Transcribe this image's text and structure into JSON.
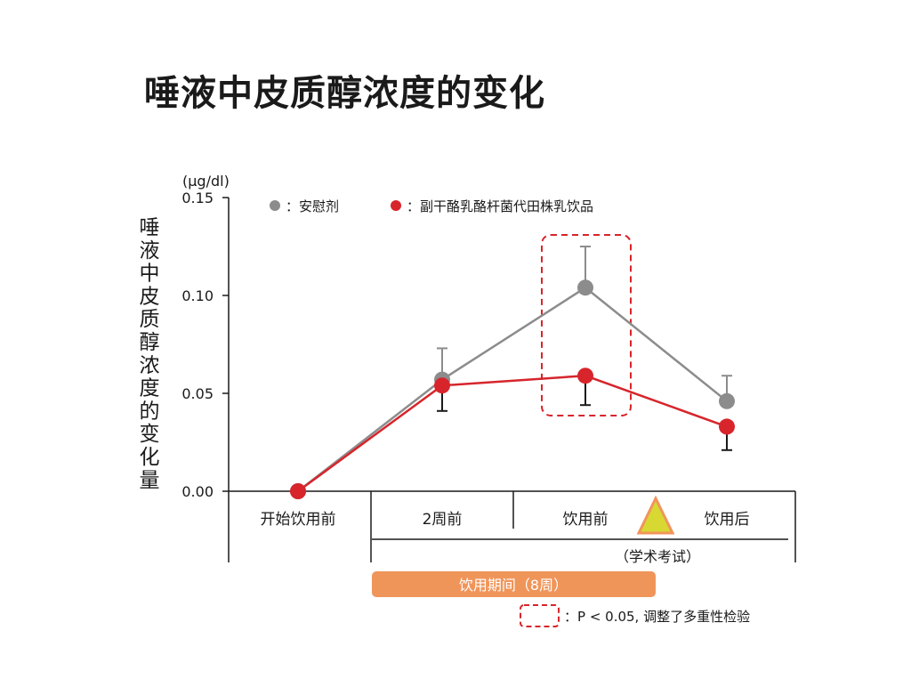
{
  "page": {
    "title": "唾液中皮质醇浓度的变化"
  },
  "chart_data": {
    "type": "line",
    "unit": "(μg/dl)",
    "ylabel": "唾液中皮质醇浓度的变化量",
    "ylim": [
      0,
      0.15
    ],
    "yticks": [
      "0.00",
      "0.05",
      "0.10",
      "0.15"
    ],
    "categories": [
      "开始饮用前",
      "2周前",
      "饮用前",
      "饮用后"
    ],
    "series": [
      {
        "name": "：安慰剂",
        "color": "#8c8c8c",
        "values": [
          0.0,
          0.057,
          0.104,
          0.046
        ],
        "err": [
          0,
          0.016,
          0.021,
          0.013
        ],
        "err_dir": "up"
      },
      {
        "name": "：副干酪乳酪杆菌代田株乳饮品",
        "color": "#d7252b",
        "values": [
          0.0,
          0.054,
          0.059,
          0.033
        ],
        "err": [
          0,
          0.013,
          0.015,
          0.012
        ],
        "err_dir": "down"
      }
    ],
    "exam_label": "（学术考试）",
    "period_label": "饮用期间（8周）",
    "significance_note": "：P < 0.05, 调整了多重性检验",
    "colors": {
      "period_bar": "#f0955a",
      "exam_marker": "#d8d833",
      "exam_marker_border": "#f0955a",
      "significance_box": "#d7252b"
    }
  }
}
